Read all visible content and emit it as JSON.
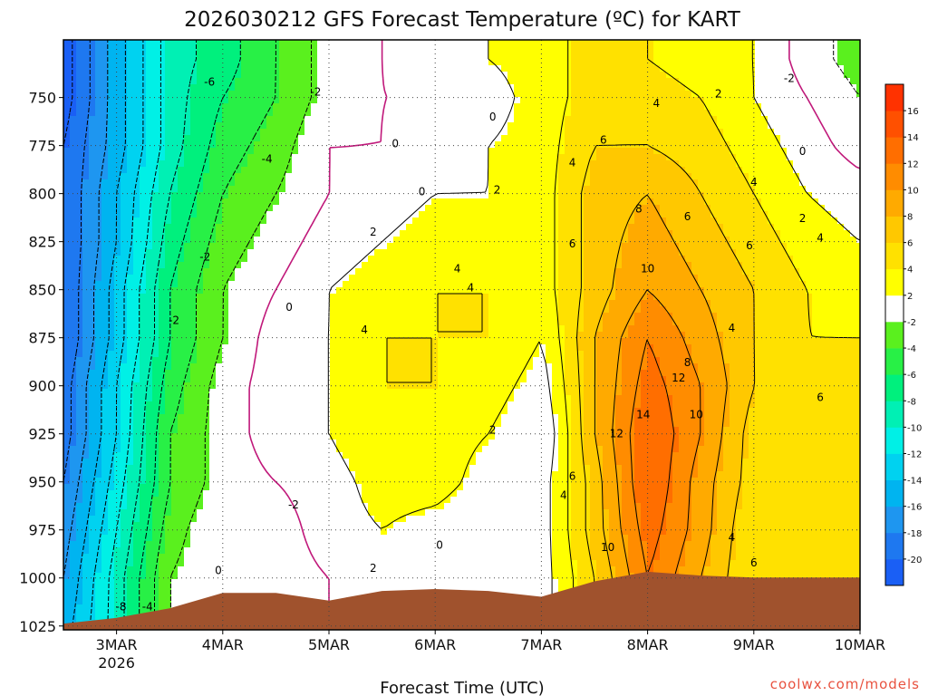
{
  "chart_data": {
    "type": "heatmap",
    "title": "2026030212 GFS Forecast Temperature (ºC) for KART",
    "xlabel": "Forecast Time (UTC)",
    "ylabel": "",
    "credit": "coolwx.com/models",
    "x_ticks": [
      {
        "label": "3MAR",
        "sub": "2026",
        "value": "2026-03-03T00"
      },
      {
        "label": "4MAR",
        "sub": "",
        "value": "2026-03-04T00"
      },
      {
        "label": "5MAR",
        "sub": "",
        "value": "2026-03-05T00"
      },
      {
        "label": "6MAR",
        "sub": "",
        "value": "2026-03-06T00"
      },
      {
        "label": "7MAR",
        "sub": "",
        "value": "2026-03-07T00"
      },
      {
        "label": "8MAR",
        "sub": "",
        "value": "2026-03-08T00"
      },
      {
        "label": "9MAR",
        "sub": "",
        "value": "2026-03-09T00"
      },
      {
        "label": "10MAR",
        "sub": "",
        "value": "2026-03-10T00"
      }
    ],
    "x_range": [
      "2026-03-02T12",
      "2026-03-10T00"
    ],
    "y_ticks": [
      750,
      775,
      800,
      825,
      850,
      875,
      900,
      925,
      950,
      975,
      1000,
      1025
    ],
    "y_range": [
      720,
      1027
    ],
    "y_units": "hPa",
    "grid": true,
    "legend": "right",
    "colorbar": {
      "levels": [
        -22,
        -20,
        -18,
        -16,
        -14,
        -12,
        -10,
        -8,
        -6,
        -4,
        -2,
        2,
        4,
        6,
        8,
        10,
        12,
        14,
        16,
        18
      ],
      "labels": [
        "-20",
        "-18",
        "-16",
        "-14",
        "-12",
        "-10",
        "-8",
        "-6",
        "-4",
        "-2",
        "2",
        "4",
        "6",
        "8",
        "10",
        "12",
        "14",
        "16"
      ],
      "colors": [
        "#1a5ff5",
        "#1e78f0",
        "#1e96f0",
        "#00b4f0",
        "#00d2f0",
        "#00f0e6",
        "#00f0b4",
        "#00f07d",
        "#28f046",
        "#5af01e",
        "#ffffff",
        "#ffff00",
        "#ffe100",
        "#ffc800",
        "#ffaa00",
        "#ff8c00",
        "#ff6e00",
        "#ff5000",
        "#ff3200"
      ]
    },
    "terrain_color": "#a0522d",
    "surface_pressure": [
      {
        "t": "2026-03-02T12",
        "p": 1024
      },
      {
        "t": "2026-03-03T00",
        "p": 1021
      },
      {
        "t": "2026-03-03T12",
        "p": 1016
      },
      {
        "t": "2026-03-04T00",
        "p": 1008
      },
      {
        "t": "2026-03-04T12",
        "p": 1008
      },
      {
        "t": "2026-03-05T00",
        "p": 1012
      },
      {
        "t": "2026-03-05T12",
        "p": 1007
      },
      {
        "t": "2026-03-06T00",
        "p": 1006
      },
      {
        "t": "2026-03-06T12",
        "p": 1007
      },
      {
        "t": "2026-03-07T00",
        "p": 1010
      },
      {
        "t": "2026-03-07T12",
        "p": 1002
      },
      {
        "t": "2026-03-08T00",
        "p": 997
      },
      {
        "t": "2026-03-08T12",
        "p": 999
      },
      {
        "t": "2026-03-09T00",
        "p": 1000
      },
      {
        "t": "2026-03-10T00",
        "p": 1000
      }
    ],
    "temperature_grid": {
      "times": [
        "2026-03-02T12",
        "2026-03-03T00",
        "2026-03-03T12",
        "2026-03-04T00",
        "2026-03-04T12",
        "2026-03-05T00",
        "2026-03-05T12",
        "2026-03-06T00",
        "2026-03-06T12",
        "2026-03-07T00",
        "2026-03-07T12",
        "2026-03-08T00",
        "2026-03-08T12",
        "2026-03-09T00",
        "2026-03-09T12",
        "2026-03-10T00"
      ],
      "levels_hpa": [
        730,
        750,
        775,
        800,
        825,
        850,
        875,
        900,
        925,
        950,
        975,
        1000,
        1025
      ],
      "values": [
        [
          -21,
          -15,
          -9,
          -7,
          -4,
          -1,
          0,
          1,
          2,
          3,
          5,
          4,
          3,
          2,
          -1,
          -3
        ],
        [
          -21,
          -15,
          -9,
          -6,
          -4,
          -1,
          0,
          0,
          1,
          3,
          5,
          5,
          4,
          2,
          0,
          -2
        ],
        [
          -20,
          -15,
          -9,
          -5,
          -3,
          0,
          0,
          1,
          2,
          3,
          6,
          6,
          5,
          3,
          1,
          -1
        ],
        [
          -20,
          -14,
          -8,
          -4,
          -2,
          0,
          1,
          2,
          2,
          3,
          7,
          8,
          6,
          4,
          2,
          1
        ],
        [
          -20,
          -14,
          -7,
          -3,
          -1,
          1,
          2,
          3,
          3,
          3,
          7,
          9,
          7,
          5,
          3,
          2
        ],
        [
          -20,
          -13,
          -6,
          -2,
          0,
          2,
          3,
          4,
          4,
          3,
          7,
          10,
          8,
          6,
          4,
          3
        ],
        [
          -20,
          -13,
          -6,
          -2,
          1,
          2,
          4,
          4,
          4,
          2,
          8,
          12,
          9,
          6,
          4,
          4
        ],
        [
          -19,
          -12,
          -5,
          -1,
          1,
          2,
          4,
          4,
          3,
          1,
          8,
          13,
          10,
          6,
          5,
          5
        ],
        [
          -19,
          -12,
          -4,
          -1,
          1,
          2,
          4,
          3,
          2,
          0,
          8,
          14,
          10,
          5,
          5,
          6
        ],
        [
          -18,
          -11,
          -4,
          -1,
          0,
          1,
          3,
          3,
          1,
          1,
          7,
          14,
          9,
          5,
          5,
          6
        ],
        [
          -17,
          -10,
          -3,
          0,
          -1,
          1,
          2,
          1,
          0,
          1,
          7,
          13,
          9,
          4,
          5,
          6
        ],
        [
          -16,
          -9,
          -2,
          0,
          -1,
          0,
          1,
          0,
          0,
          1,
          6,
          12,
          8,
          4,
          4,
          5
        ],
        [
          -15,
          -9,
          -2,
          0,
          -1,
          0,
          1,
          0,
          0,
          1,
          6,
          12,
          8,
          4,
          4,
          5
        ]
      ]
    },
    "contour_labels": [
      {
        "text": "-6",
        "t": "2026-03-03T21",
        "p": 742
      },
      {
        "text": "-4",
        "t": "2026-03-04T10",
        "p": 782
      },
      {
        "text": "-2",
        "t": "2026-03-04T21",
        "p": 747
      },
      {
        "text": "-2",
        "t": "2026-03-03T20",
        "p": 833
      },
      {
        "text": "-2",
        "t": "2026-03-03T13",
        "p": 866
      },
      {
        "text": "-2",
        "t": "2026-03-04T16",
        "p": 962
      },
      {
        "text": "0",
        "t": "2026-03-05T15",
        "p": 774
      },
      {
        "text": "0",
        "t": "2026-03-05T21",
        "p": 799
      },
      {
        "text": "0",
        "t": "2026-03-06T13",
        "p": 760
      },
      {
        "text": "0",
        "t": "2026-03-04T15",
        "p": 859
      },
      {
        "text": "0",
        "t": "2026-03-03T23",
        "p": 996
      },
      {
        "text": "0",
        "t": "2026-03-06T01",
        "p": 983
      },
      {
        "text": "0",
        "t": "2026-03-09T11",
        "p": 778
      },
      {
        "text": "2",
        "t": "2026-03-05T10",
        "p": 820
      },
      {
        "text": "2",
        "t": "2026-03-06T14",
        "p": 798
      },
      {
        "text": "2",
        "t": "2026-03-06T13",
        "p": 923
      },
      {
        "text": "2",
        "t": "2026-03-05T10",
        "p": 995
      },
      {
        "text": "2",
        "t": "2026-03-08T16",
        "p": 748
      },
      {
        "text": "2",
        "t": "2026-03-09T11",
        "p": 813
      },
      {
        "text": "-2",
        "t": "2026-03-09T08",
        "p": 740
      },
      {
        "text": "4",
        "t": "2026-03-05T08",
        "p": 871
      },
      {
        "text": "4",
        "t": "2026-03-06T05",
        "p": 839
      },
      {
        "text": "4",
        "t": "2026-03-06T08",
        "p": 849
      },
      {
        "text": "4",
        "t": "2026-03-07T07",
        "p": 784
      },
      {
        "text": "4",
        "t": "2026-03-08T02",
        "p": 753
      },
      {
        "text": "4",
        "t": "2026-03-08T19",
        "p": 870
      },
      {
        "text": "4",
        "t": "2026-03-09T00",
        "p": 794
      },
      {
        "text": "4",
        "t": "2026-03-09T15",
        "p": 823
      },
      {
        "text": "4",
        "t": "2026-03-08T19",
        "p": 979
      },
      {
        "text": "4",
        "t": "2026-03-07T05",
        "p": 957
      },
      {
        "text": "6",
        "t": "2026-03-07T14",
        "p": 772
      },
      {
        "text": "6",
        "t": "2026-03-07T07",
        "p": 826
      },
      {
        "text": "6",
        "t": "2026-03-08T09",
        "p": 812
      },
      {
        "text": "6",
        "t": "2026-03-08T23",
        "p": 827
      },
      {
        "text": "6",
        "t": "2026-03-09T15",
        "p": 906
      },
      {
        "text": "6",
        "t": "2026-03-07T07",
        "p": 947
      },
      {
        "text": "6",
        "t": "2026-03-09T00",
        "p": 992
      },
      {
        "text": "8",
        "t": "2026-03-07T22",
        "p": 808
      },
      {
        "text": "8",
        "t": "2026-03-08T09",
        "p": 888
      },
      {
        "text": "10",
        "t": "2026-03-08T00",
        "p": 839
      },
      {
        "text": "10",
        "t": "2026-03-08T11",
        "p": 915
      },
      {
        "text": "10",
        "t": "2026-03-07T15",
        "p": 984
      },
      {
        "text": "12",
        "t": "2026-03-08T07",
        "p": 896
      },
      {
        "text": "12",
        "t": "2026-03-07T17",
        "p": 925
      },
      {
        "text": "14",
        "t": "2026-03-07T23",
        "p": 915
      },
      {
        "text": "-8",
        "t": "2026-03-03T01",
        "p": 1015
      },
      {
        "text": "-4",
        "t": "2026-03-03T07",
        "p": 1015
      }
    ]
  }
}
